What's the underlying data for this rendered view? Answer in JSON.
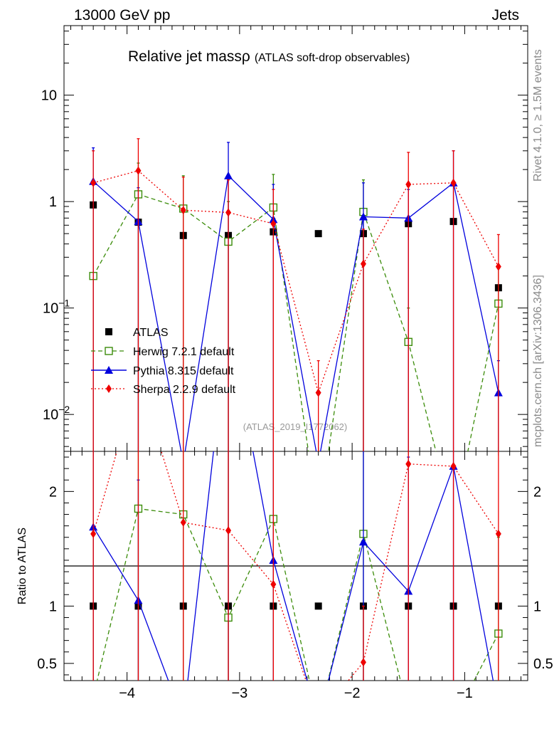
{
  "header": {
    "energy": "13000 GeV pp",
    "process": "Jets"
  },
  "title": {
    "main": "Relative jet mass",
    "rho": "ρ",
    "sub": "(ATLAS soft-drop observables)"
  },
  "watermark": "(ATLAS_2019_I1772062)",
  "side_right_top": "Rivet 4.1.0, ≥ 1.5M events",
  "side_right_bottom": "mcplots.cern.ch [arXiv:1306.3436]",
  "ratio_ylabel": "Ratio to ATLAS",
  "colors": {
    "ATLAS": "#000000",
    "Herwig": "#3b8c0a",
    "Pythia": "#0000dd",
    "Sherpa": "#ee0000"
  },
  "chart_data": {
    "type": "scatter",
    "x": [
      -4.3,
      -3.9,
      -3.5,
      -3.1,
      -2.7,
      -2.3,
      -1.9,
      -1.5,
      -1.1,
      -0.7
    ],
    "xlim": [
      -4.56,
      -0.44
    ],
    "xticks": [
      -4,
      -3,
      -2,
      -1
    ],
    "xtick_labels": [
      "−4",
      "−3",
      "−2",
      "−1"
    ],
    "main": {
      "yscale": "log",
      "ylim": [
        0.0045,
        45
      ],
      "yticks": [
        {
          "v": 10,
          "base": "10",
          "exp": ""
        },
        {
          "v": 1,
          "base": "1",
          "exp": ""
        },
        {
          "v": 0.1,
          "base": "10",
          "exp": "−1"
        },
        {
          "v": 0.01,
          "base": "10",
          "exp": "−2"
        }
      ]
    },
    "ratio": {
      "ylim": [
        0.35,
        2.35
      ],
      "yticks": [
        {
          "v": 2,
          "label": "2"
        },
        {
          "v": 1,
          "label": "1"
        },
        {
          "v": 0.5,
          "label": "0.5"
        }
      ]
    },
    "series": [
      {
        "name": "ATLAS",
        "label": "ATLAS",
        "marker": "square",
        "values": [
          0.93,
          0.64,
          0.48,
          0.48,
          0.52,
          0.5,
          0.5,
          0.62,
          0.65,
          0.155
        ],
        "err_high": [
          0.95,
          0.66,
          0.5,
          0.5,
          0.54,
          0.52,
          0.52,
          0.64,
          0.67,
          0.165
        ],
        "err_low": [
          0.91,
          0.62,
          0.46,
          0.46,
          0.5,
          0.48,
          0.48,
          0.6,
          0.63,
          0.145
        ],
        "ratio": [
          1,
          1,
          1,
          1,
          1,
          1,
          1,
          1,
          1,
          1
        ]
      },
      {
        "name": "Herwig",
        "label": "Herwig 7.2.1 default",
        "marker": "open-square",
        "dash": "6,4",
        "values": [
          0.2,
          1.17,
          0.86,
          0.42,
          0.88,
          0.001,
          0.8,
          0.048,
          0.001,
          0.11
        ],
        "err_high": [
          1.5,
          2.3,
          1.75,
          1.0,
          1.8,
          0.001,
          1.6,
          0.1,
          0.001,
          0.25
        ],
        "err_low": [
          0.001,
          0.001,
          0.001,
          0.001,
          0.001,
          0.001,
          0.001,
          0.001,
          0.001,
          0.001
        ],
        "ratio": [
          0.21,
          1.85,
          1.8,
          0.9,
          1.76,
          0.001,
          1.63,
          0.077,
          0.001,
          0.76
        ],
        "ratio_high": [
          3,
          3,
          3,
          3,
          3,
          0.001,
          3,
          0.15,
          0.001,
          1.6
        ],
        "ratio_low": [
          0.001,
          0.001,
          0.001,
          0.001,
          0.001,
          0.001,
          0.001,
          0.001,
          0.001,
          0.001
        ]
      },
      {
        "name": "Pythia",
        "label": "Pythia 8.315 default",
        "marker": "triangle",
        "values": [
          1.55,
          0.65,
          0.0035,
          1.75,
          0.68,
          0.0035,
          0.72,
          0.7,
          1.5,
          0.016
        ],
        "err_high": [
          3.2,
          1.35,
          0.0035,
          3.6,
          1.45,
          0.0035,
          1.5,
          1.3,
          3.0,
          0.032
        ],
        "err_low": [
          0.001,
          0.001,
          0.001,
          0.001,
          0.001,
          0.001,
          0.001,
          0.001,
          0.001,
          0.001
        ],
        "ratio": [
          1.69,
          1.05,
          0.002,
          3.5,
          1.4,
          0.002,
          1.56,
          1.13,
          2.22,
          0.1
        ],
        "ratio_high": [
          3,
          2.1,
          0.002,
          3.5,
          3,
          0.002,
          3,
          2.3,
          3,
          0.2
        ],
        "ratio_low": [
          0.001,
          0.001,
          0.001,
          0.001,
          0.001,
          0.001,
          0.001,
          0.001,
          0.001,
          0.001
        ]
      },
      {
        "name": "Sherpa",
        "label": "Sherpa 2.2.9 default",
        "marker": "diamond",
        "dash": "2,3",
        "values": [
          1.5,
          1.95,
          0.83,
          0.79,
          0.62,
          0.016,
          0.26,
          1.45,
          1.5,
          0.245
        ],
        "err_high": [
          3.0,
          3.9,
          1.7,
          1.6,
          1.3,
          0.032,
          0.55,
          2.9,
          3.0,
          0.49
        ],
        "err_low": [
          0.001,
          0.001,
          0.001,
          0.001,
          0.001,
          0.001,
          0.001,
          0.001,
          0.001,
          0.001
        ],
        "ratio": [
          1.63,
          3.0,
          1.73,
          1.66,
          1.19,
          0.032,
          0.51,
          2.24,
          2.22,
          1.63
        ],
        "ratio_high": [
          3,
          3,
          3,
          3,
          3,
          0.064,
          1.0,
          3,
          3,
          3
        ],
        "ratio_low": [
          0.001,
          0.001,
          0.001,
          0.001,
          0.001,
          0.001,
          0.001,
          0.001,
          0.001,
          0.001
        ]
      }
    ]
  }
}
